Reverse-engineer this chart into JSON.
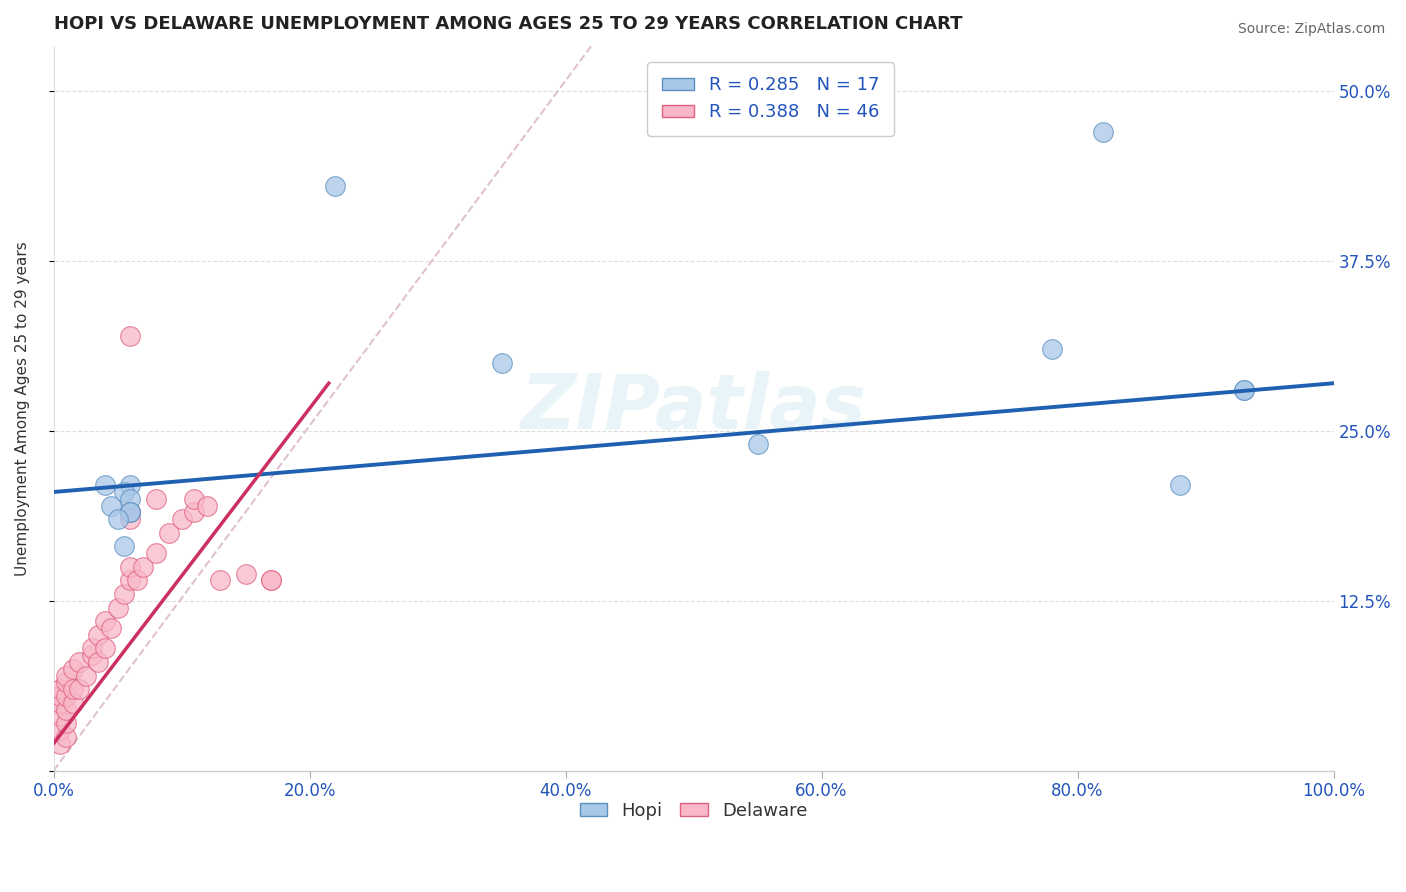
{
  "title": "HOPI VS DELAWARE UNEMPLOYMENT AMONG AGES 25 TO 29 YEARS CORRELATION CHART",
  "source": "Source: ZipAtlas.com",
  "ylabel": "Unemployment Among Ages 25 to 29 years",
  "hopi_label": "Hopi",
  "delaware_label": "Delaware",
  "hopi_R": "0.285",
  "hopi_N": "17",
  "delaware_R": "0.388",
  "delaware_N": "46",
  "xlim": [
    0,
    1.0
  ],
  "ylim_max": 0.5333,
  "ytick_positions": [
    0.0,
    0.125,
    0.25,
    0.375,
    0.5
  ],
  "ytick_labels": [
    "",
    "12.5%",
    "25.0%",
    "37.5%",
    "50.0%"
  ],
  "hopi_color": "#a8c8e8",
  "delaware_color": "#f8b8c8",
  "hopi_edge_color": "#5a8fc0",
  "delaware_edge_color": "#e06080",
  "hopi_line_color": "#2060b0",
  "delaware_line_color": "#cc3060",
  "ref_line_color": "#ddbbcc",
  "bg_color": "#ffffff",
  "title_color": "#222222",
  "axis_tick_color": "#2255bb",
  "grid_color": "#dddddd",
  "hopi_x": [
    0.04,
    0.06,
    0.055,
    0.06,
    0.06,
    0.045,
    0.22,
    0.35,
    0.55,
    0.78,
    0.82,
    0.88,
    0.93,
    0.93,
    0.06,
    0.05,
    0.055
  ],
  "hopi_y": [
    0.21,
    0.21,
    0.205,
    0.2,
    0.19,
    0.195,
    0.43,
    0.3,
    0.24,
    0.31,
    0.47,
    0.21,
    0.28,
    0.28,
    0.19,
    0.185,
    0.165
  ],
  "delaware_x": [
    0.005,
    0.005,
    0.005,
    0.005,
    0.005,
    0.005,
    0.01,
    0.01,
    0.01,
    0.01,
    0.01,
    0.01,
    0.015,
    0.015,
    0.015,
    0.02,
    0.02,
    0.025,
    0.03,
    0.03,
    0.035,
    0.035,
    0.04,
    0.04,
    0.045,
    0.05,
    0.055,
    0.06,
    0.06,
    0.06,
    0.065,
    0.07,
    0.08,
    0.08,
    0.09,
    0.1,
    0.11,
    0.11,
    0.12,
    0.13,
    0.15,
    0.17,
    0.17,
    0.06,
    0.06,
    0.06
  ],
  "delaware_y": [
    0.02,
    0.03,
    0.04,
    0.05,
    0.055,
    0.06,
    0.025,
    0.035,
    0.045,
    0.055,
    0.065,
    0.07,
    0.05,
    0.06,
    0.075,
    0.06,
    0.08,
    0.07,
    0.085,
    0.09,
    0.08,
    0.1,
    0.09,
    0.11,
    0.105,
    0.12,
    0.13,
    0.14,
    0.15,
    0.19,
    0.14,
    0.15,
    0.16,
    0.2,
    0.175,
    0.185,
    0.19,
    0.2,
    0.195,
    0.14,
    0.145,
    0.14,
    0.14,
    0.32,
    0.19,
    0.185
  ],
  "hopi_trendline": [
    0.0,
    1.0,
    0.205,
    0.285
  ],
  "delaware_trendline": [
    0.0,
    0.215,
    0.02,
    0.285
  ],
  "ref_line": [
    0.0,
    0.42,
    0.0,
    0.533
  ]
}
